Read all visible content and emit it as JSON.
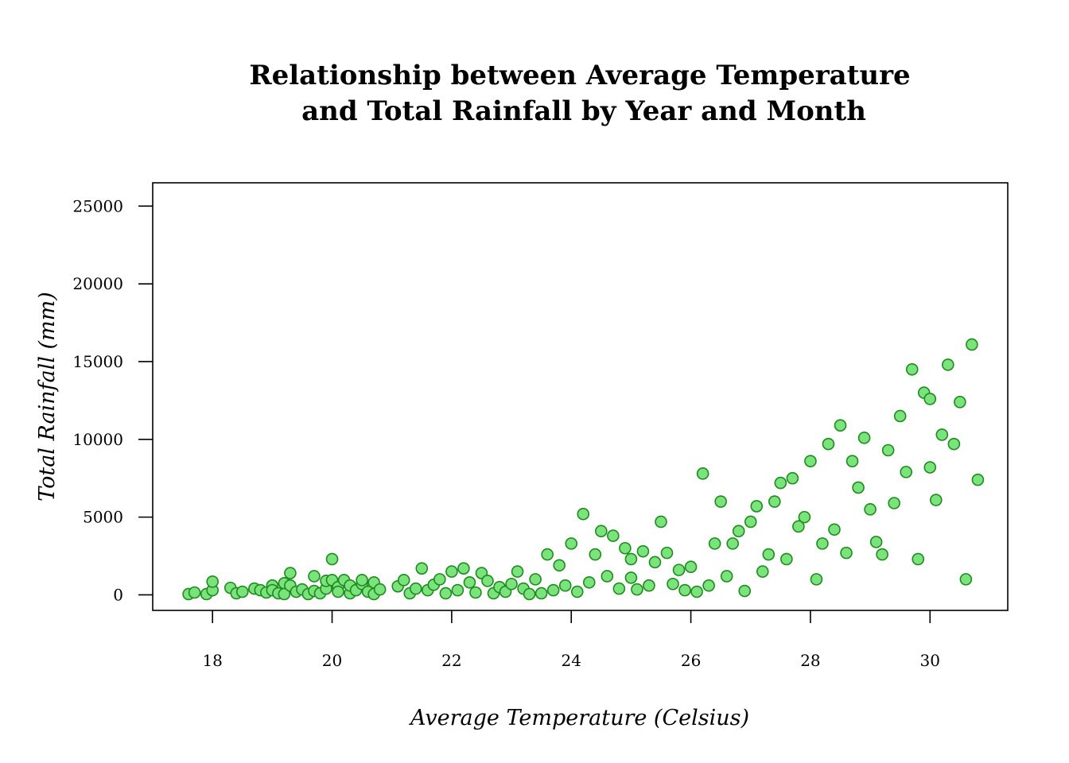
{
  "chart_data": {
    "type": "scatter",
    "title_lines": [
      "Relationship between Average Temperature",
      "and Total Rainfall by Year and Month"
    ],
    "xlabel": "Average Temperature (Celsius)",
    "ylabel": "Total Rainfall (mm)",
    "xlim": [
      17.0,
      31.3
    ],
    "ylim": [
      -1000,
      26500
    ],
    "xticks": [
      18,
      20,
      22,
      24,
      26,
      28,
      30
    ],
    "yticks": [
      0,
      5000,
      10000,
      15000,
      20000,
      25000
    ],
    "grid": false,
    "legend": "none",
    "marker_fill": "#7be37b",
    "marker_edge": "#1f8a1f",
    "points": [
      [
        17.6,
        50
      ],
      [
        17.7,
        150
      ],
      [
        17.9,
        50
      ],
      [
        18.0,
        300
      ],
      [
        18.0,
        850
      ],
      [
        18.3,
        450
      ],
      [
        18.4,
        100
      ],
      [
        18.5,
        200
      ],
      [
        18.7,
        400
      ],
      [
        18.8,
        300
      ],
      [
        18.9,
        150
      ],
      [
        19.0,
        600
      ],
      [
        19.0,
        300
      ],
      [
        19.1,
        100
      ],
      [
        19.2,
        750
      ],
      [
        19.2,
        50
      ],
      [
        19.3,
        1400
      ],
      [
        19.3,
        600
      ],
      [
        19.4,
        200
      ],
      [
        19.5,
        350
      ],
      [
        19.6,
        50
      ],
      [
        19.7,
        1200
      ],
      [
        19.7,
        250
      ],
      [
        19.8,
        100
      ],
      [
        19.9,
        400
      ],
      [
        19.9,
        900
      ],
      [
        20.0,
        2300
      ],
      [
        20.0,
        950
      ],
      [
        20.1,
        500
      ],
      [
        20.1,
        200
      ],
      [
        20.2,
        950
      ],
      [
        20.3,
        100
      ],
      [
        20.3,
        600
      ],
      [
        20.4,
        300
      ],
      [
        20.5,
        700
      ],
      [
        20.5,
        950
      ],
      [
        20.6,
        200
      ],
      [
        20.7,
        50
      ],
      [
        20.7,
        800
      ],
      [
        20.8,
        350
      ],
      [
        21.1,
        550
      ],
      [
        21.2,
        950
      ],
      [
        21.3,
        100
      ],
      [
        21.4,
        400
      ],
      [
        21.5,
        1700
      ],
      [
        21.6,
        300
      ],
      [
        21.7,
        650
      ],
      [
        21.8,
        1000
      ],
      [
        21.9,
        100
      ],
      [
        22.0,
        1500
      ],
      [
        22.1,
        300
      ],
      [
        22.2,
        1700
      ],
      [
        22.3,
        800
      ],
      [
        22.4,
        150
      ],
      [
        22.5,
        1400
      ],
      [
        22.6,
        900
      ],
      [
        22.7,
        100
      ],
      [
        22.8,
        500
      ],
      [
        22.9,
        200
      ],
      [
        23.0,
        700
      ],
      [
        23.1,
        1500
      ],
      [
        23.2,
        400
      ],
      [
        23.3,
        50
      ],
      [
        23.4,
        1000
      ],
      [
        23.5,
        100
      ],
      [
        23.6,
        2600
      ],
      [
        23.7,
        300
      ],
      [
        23.8,
        1900
      ],
      [
        23.9,
        600
      ],
      [
        24.0,
        3300
      ],
      [
        24.1,
        200
      ],
      [
        24.2,
        5200
      ],
      [
        24.3,
        800
      ],
      [
        24.4,
        2600
      ],
      [
        24.5,
        4100
      ],
      [
        24.6,
        1200
      ],
      [
        24.7,
        3800
      ],
      [
        24.8,
        400
      ],
      [
        24.9,
        3000
      ],
      [
        25.0,
        2300
      ],
      [
        25.0,
        1100
      ],
      [
        25.1,
        350
      ],
      [
        25.2,
        2800
      ],
      [
        25.3,
        600
      ],
      [
        25.4,
        2100
      ],
      [
        25.5,
        4700
      ],
      [
        25.6,
        2700
      ],
      [
        25.7,
        700
      ],
      [
        25.8,
        1600
      ],
      [
        25.9,
        300
      ],
      [
        26.0,
        1800
      ],
      [
        26.1,
        200
      ],
      [
        26.2,
        7800
      ],
      [
        26.3,
        600
      ],
      [
        26.4,
        3300
      ],
      [
        26.5,
        6000
      ],
      [
        26.6,
        1200
      ],
      [
        26.7,
        3300
      ],
      [
        26.8,
        4100
      ],
      [
        26.9,
        250
      ],
      [
        27.0,
        4700
      ],
      [
        27.1,
        5700
      ],
      [
        27.2,
        1500
      ],
      [
        27.3,
        2600
      ],
      [
        27.4,
        6000
      ],
      [
        27.5,
        7200
      ],
      [
        27.6,
        2300
      ],
      [
        27.7,
        7500
      ],
      [
        27.8,
        4400
      ],
      [
        27.9,
        5000
      ],
      [
        28.0,
        8600
      ],
      [
        28.1,
        1000
      ],
      [
        28.2,
        3300
      ],
      [
        28.3,
        9700
      ],
      [
        28.4,
        4200
      ],
      [
        28.5,
        10900
      ],
      [
        28.6,
        2700
      ],
      [
        28.7,
        8600
      ],
      [
        28.8,
        6900
      ],
      [
        28.9,
        10100
      ],
      [
        29.0,
        5500
      ],
      [
        29.1,
        3400
      ],
      [
        29.2,
        2600
      ],
      [
        29.3,
        9300
      ],
      [
        29.4,
        5900
      ],
      [
        29.5,
        11500
      ],
      [
        29.6,
        7900
      ],
      [
        29.7,
        14500
      ],
      [
        29.8,
        2300
      ],
      [
        29.9,
        13000
      ],
      [
        30.0,
        8200
      ],
      [
        30.0,
        12600
      ],
      [
        30.1,
        6100
      ],
      [
        30.2,
        10300
      ],
      [
        30.3,
        14800
      ],
      [
        30.4,
        9700
      ],
      [
        30.5,
        12400
      ],
      [
        30.6,
        1000
      ],
      [
        30.7,
        16100
      ],
      [
        30.8,
        7400
      ]
    ]
  }
}
